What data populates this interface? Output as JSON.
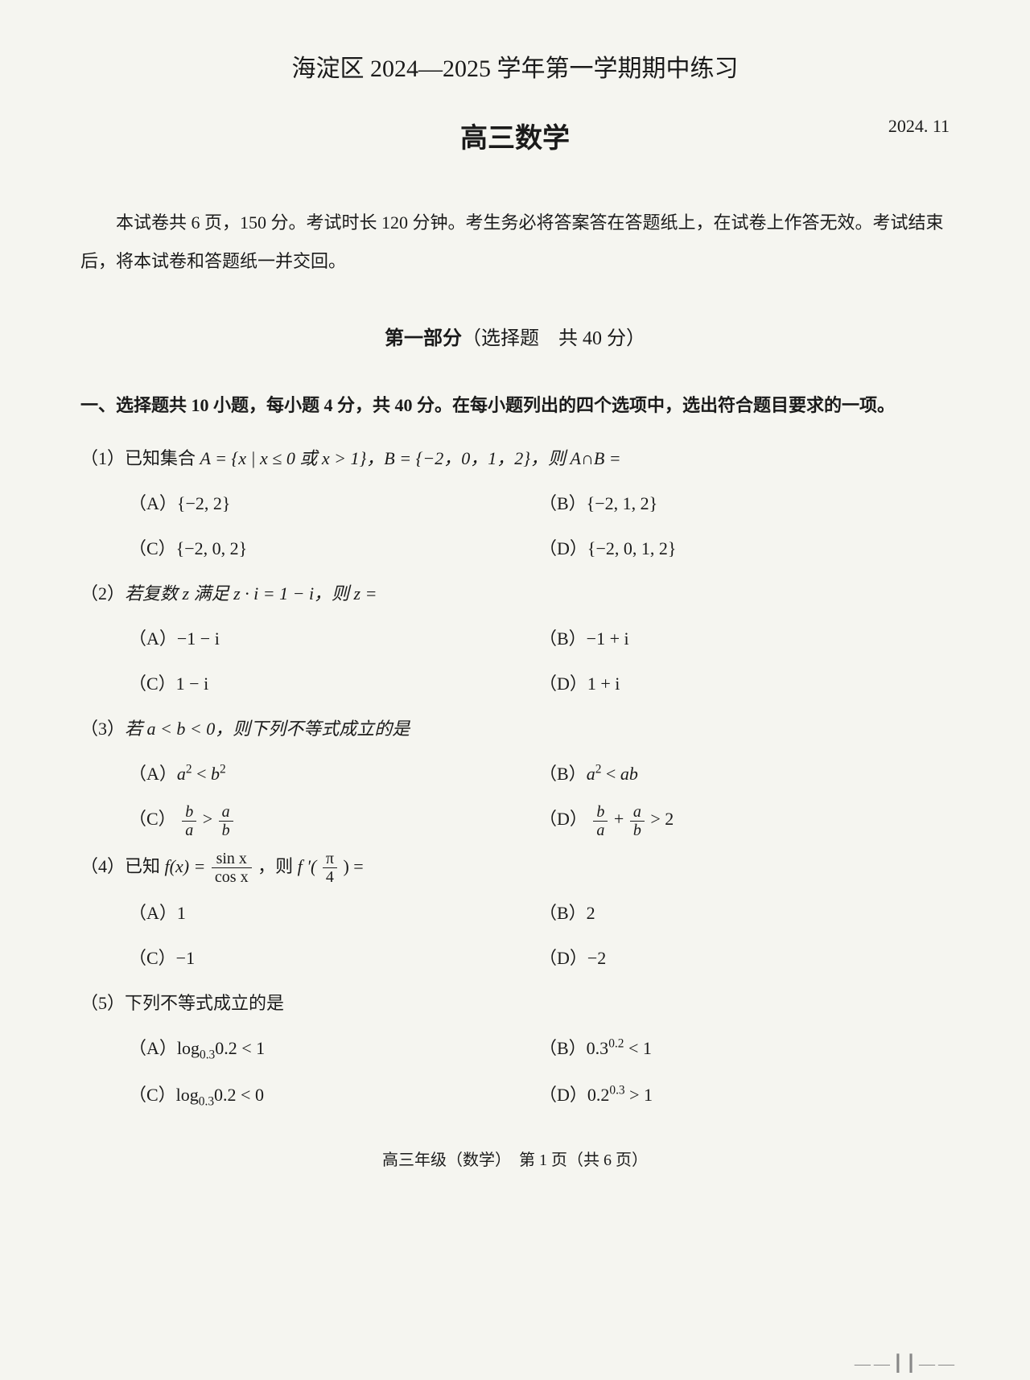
{
  "header": {
    "main_title": "海淀区 2024—2025 学年第一学期期中练习",
    "subject": "高三数学",
    "date": "2024. 11"
  },
  "intro": "本试卷共 6 页，150 分。考试时长 120 分钟。考生务必将答案答在答题纸上，在试卷上作答无效。考试结束后，将本试卷和答题纸一并交回。",
  "part": {
    "label_bold": "第一部分",
    "label_rest": "（选择题　共 40 分）"
  },
  "section_instruction": "一、选择题共 10 小题，每小题 4 分，共 40 分。在每小题列出的四个选项中，选出符合题目要求的一项。",
  "q1": {
    "num": "（1）",
    "stem_pre": "已知集合 ",
    "A_eq": "A = {x | x ≤ 0 或 x > 1}，",
    "B_eq": "B = {−2，0，1，2}，则 A∩B =",
    "optA": "（A）{−2, 2}",
    "optB": "（B）{−2, 1, 2}",
    "optC": "（C）{−2, 0, 2}",
    "optD": "（D）{−2, 0, 1, 2}"
  },
  "q2": {
    "num": "（2）",
    "stem": "若复数 z 满足 z · i = 1 − i，则 z =",
    "optA": "（A）−1 − i",
    "optB": "（B）−1 + i",
    "optC": "（C）1 − i",
    "optD": "（D）1 + i"
  },
  "q3": {
    "num": "（3）",
    "stem": "若 a < b < 0，则下列不等式成立的是",
    "optA_pre": "（A）",
    "optB_pre": "（B）",
    "optC_pre": "（C）",
    "optD_pre": "（D）",
    "a2": "a",
    "lt": " < ",
    "b2": "b",
    "ab": "ab",
    "gt": " > ",
    "plus": " + ",
    "two": " 2"
  },
  "q4": {
    "num": "（4）",
    "stem_pre": "已知 ",
    "fx": "f(x) = ",
    "sin": "sin x",
    "cos": "cos x",
    "then": "，则 ",
    "fprime": "f ′(",
    "pi": "π",
    "four": "4",
    "eq": ") =",
    "optA": "（A）1",
    "optB": "（B）2",
    "optC": "（C）−1",
    "optD": "（D）−2"
  },
  "q5": {
    "num": "（5）",
    "stem": "下列不等式成立的是",
    "optA_pre": "（A）log",
    "optA_sub": "0.3",
    "optA_post": "0.2 < 1",
    "optB_pre": "（B）0.3",
    "optB_sup": "0.2",
    "optB_post": " < 1",
    "optC_pre": "（C）log",
    "optC_sub": "0.3",
    "optC_post": "0.2 < 0",
    "optD_pre": "（D）0.2",
    "optD_sup": "0.3",
    "optD_post": " > 1"
  },
  "footer": "高三年级（数学）　第 1 页（共 6 页）",
  "curl": "——┃┃——"
}
